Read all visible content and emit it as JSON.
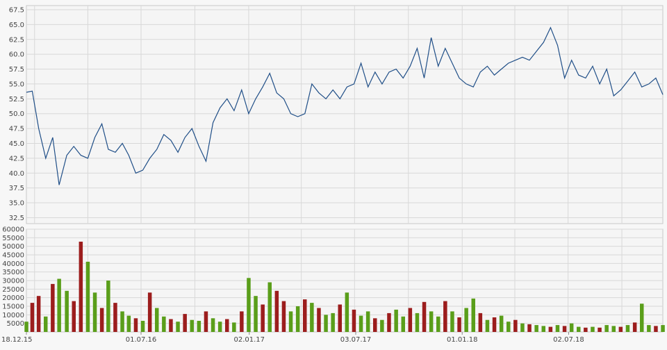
{
  "chart_data": [
    {
      "type": "line",
      "title": "",
      "xlabel": "",
      "ylabel": "",
      "ylim": [
        31.5,
        68.2
      ],
      "yticks": [
        "32.5",
        "35.0",
        "37.5",
        "40.0",
        "42.5",
        "45.0",
        "47.5",
        "50.0",
        "52.5",
        "55.0",
        "57.5",
        "60.0",
        "62.5",
        "65.0",
        "67.5"
      ],
      "grid": true,
      "colors": {
        "line": "#1f4e87",
        "grid": "#d8d8d8",
        "background": "#f7f7f7"
      },
      "x": [
        "2015-12-18",
        "2015-12-28",
        "2016-01-08",
        "2016-01-20",
        "2016-02-01",
        "2016-02-12",
        "2016-02-25",
        "2016-03-08",
        "2016-03-20",
        "2016-04-01",
        "2016-04-13",
        "2016-04-25",
        "2016-05-06",
        "2016-05-18",
        "2016-05-30",
        "2016-06-10",
        "2016-06-22",
        "2016-07-04",
        "2016-07-16",
        "2016-07-28",
        "2016-08-09",
        "2016-08-21",
        "2016-09-02",
        "2016-09-14",
        "2016-09-26",
        "2016-10-08",
        "2016-10-20",
        "2016-11-01",
        "2016-11-13",
        "2016-11-25",
        "2016-12-07",
        "2016-12-20",
        "2017-01-01",
        "2017-01-13",
        "2017-01-25",
        "2017-02-06",
        "2017-02-18",
        "2017-03-02",
        "2017-03-14",
        "2017-03-26",
        "2017-04-07",
        "2017-04-19",
        "2017-05-01",
        "2017-05-13",
        "2017-05-25",
        "2017-06-06",
        "2017-06-18",
        "2017-06-30",
        "2017-07-12",
        "2017-07-24",
        "2017-08-05",
        "2017-08-17",
        "2017-08-29",
        "2017-09-10",
        "2017-09-22",
        "2017-10-04",
        "2017-10-16",
        "2017-10-28",
        "2017-11-09",
        "2017-11-21",
        "2017-12-03",
        "2017-12-15",
        "2017-12-27",
        "2018-01-08",
        "2018-01-20",
        "2018-02-01",
        "2018-02-13",
        "2018-02-25",
        "2018-03-09",
        "2018-03-21",
        "2018-04-02",
        "2018-04-14",
        "2018-04-26",
        "2018-05-08",
        "2018-05-20",
        "2018-06-01",
        "2018-06-13",
        "2018-06-25",
        "2018-07-07",
        "2018-07-19",
        "2018-07-31",
        "2018-08-12",
        "2018-08-24",
        "2018-09-05",
        "2018-09-17",
        "2018-09-29",
        "2018-10-11",
        "2018-10-23",
        "2018-11-04",
        "2018-11-16",
        "2018-11-28",
        "2018-12-10"
      ],
      "series": [
        {
          "values": [
            53.6,
            53.8,
            47.5,
            42.5,
            46.0,
            38.0,
            43.0,
            44.5,
            43.0,
            42.5,
            46.0,
            48.3,
            44.0,
            43.5,
            45.0,
            43.0,
            40.0,
            40.5,
            42.5,
            44.0,
            46.5,
            45.5,
            43.5,
            46.0,
            47.5,
            44.5,
            42.0,
            48.5,
            51.0,
            52.5,
            50.5,
            54.0,
            50.0,
            52.5,
            54.5,
            56.8,
            53.5,
            52.5,
            50.0,
            49.5,
            50.0,
            55.0,
            53.5,
            52.5,
            54.0,
            52.5,
            54.5,
            55.0,
            58.5,
            54.5,
            57.0,
            55.0,
            57.0,
            57.5,
            56.0,
            58.0,
            61.0,
            56.0,
            62.8,
            58.0,
            61.0,
            58.5,
            56.0,
            55.0,
            54.5,
            57.0,
            58.0,
            56.5,
            57.5,
            58.5,
            59.0,
            59.5,
            59.0,
            60.5,
            62.0,
            64.5,
            61.5,
            56.0,
            59.0,
            56.5,
            56.0,
            58.0,
            55.0,
            57.5,
            53.0,
            54.0,
            55.5,
            57.0,
            54.5,
            55.0,
            56.0,
            53.2
          ]
        }
      ]
    },
    {
      "type": "bar",
      "title": "",
      "xlabel": "",
      "ylabel": "",
      "ylim": [
        0,
        60000
      ],
      "yticks": [
        "5000",
        "10000",
        "15000",
        "20000",
        "25000",
        "30000",
        "35000",
        "40000",
        "45000",
        "50000",
        "55000",
        "60000"
      ],
      "x_tick_labels": [
        "18.12.15",
        "01.07.16",
        "02.01.17",
        "03.07.17",
        "01.01.18",
        "02.07.18"
      ],
      "x_tick_dates": [
        "2015-12-18",
        "2016-07-01",
        "2017-01-02",
        "2017-07-03",
        "2018-01-01",
        "2018-07-02"
      ],
      "colors": {
        "up": "#5a9e1a",
        "down": "#9c1d1d"
      },
      "series": [
        {
          "name": "",
          "values": [
            6000,
            17000,
            21000,
            9000,
            28000,
            31000,
            24000,
            18000,
            52700,
            41000,
            23000,
            14000,
            30000,
            17000,
            12000,
            9500,
            8000,
            6500,
            23000,
            14000,
            9000,
            7500,
            6000,
            10500,
            7000,
            6500,
            12000,
            8000,
            6000,
            7500,
            5500,
            12000,
            31500,
            21000,
            16000,
            29000,
            24000,
            18000,
            12000,
            15000,
            19000,
            17000,
            14000,
            10000,
            11000,
            16000,
            23000,
            13000,
            9500,
            12000,
            8000,
            7000,
            11000,
            13000,
            9000,
            14000,
            11000,
            17500,
            12000,
            9000,
            18000,
            12000,
            8500,
            14000,
            19500,
            11000,
            7000,
            8500,
            9500,
            6000,
            7000,
            5000,
            4500,
            4000,
            3500,
            3000,
            4000,
            3500,
            5000,
            3000,
            2500,
            3000,
            2500,
            4000,
            3500,
            3000,
            4000,
            5500,
            16500,
            4000,
            3500,
            4000
          ]
        }
      ],
      "directions": [
        1,
        0,
        0,
        1,
        0,
        1,
        1,
        0,
        0,
        1,
        1,
        0,
        1,
        0,
        1,
        1,
        0,
        1,
        0,
        1,
        1,
        0,
        1,
        0,
        1,
        1,
        0,
        1,
        1,
        0,
        1,
        0,
        1,
        1,
        0,
        1,
        0,
        0,
        1,
        1,
        0,
        1,
        0,
        1,
        1,
        0,
        1,
        0,
        1,
        1,
        0,
        1,
        0,
        1,
        1,
        0,
        1,
        0,
        1,
        1,
        0,
        1,
        0,
        1,
        1,
        0,
        1,
        0,
        1,
        1,
        0,
        1,
        0,
        1,
        1,
        0,
        1,
        0,
        1,
        1,
        0,
        1,
        0,
        1,
        1,
        0,
        1,
        0,
        1,
        1,
        0,
        1
      ]
    }
  ]
}
